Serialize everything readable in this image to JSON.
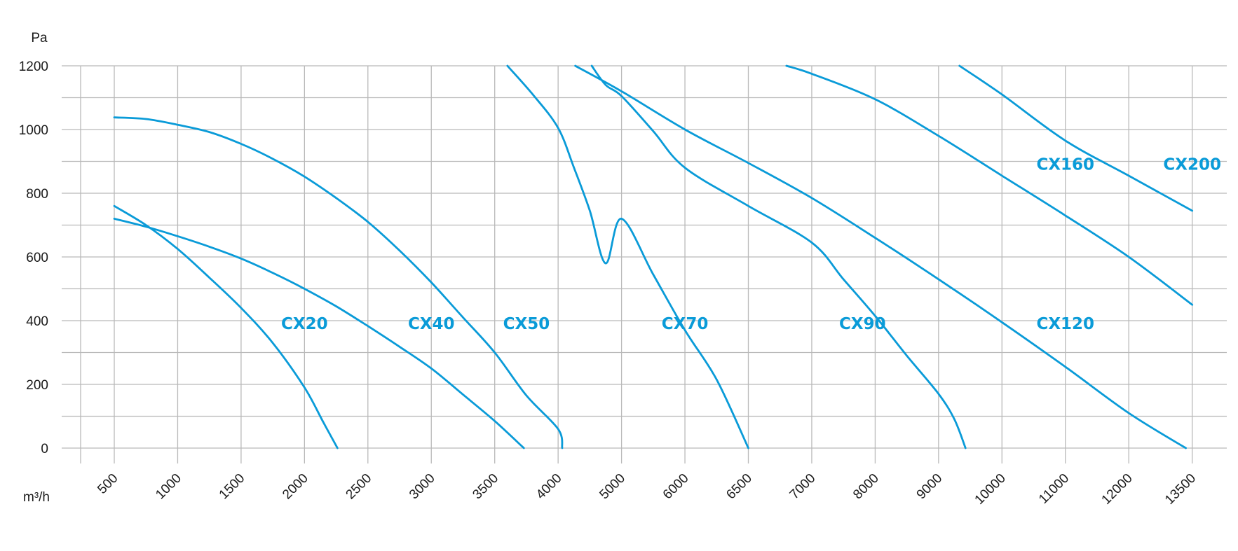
{
  "chart_data": {
    "type": "line",
    "title": "",
    "xlabel": "m³/h",
    "ylabel": "Pa",
    "x_tick_labels": [
      "500",
      "1000",
      "1500",
      "2000",
      "2500",
      "3000",
      "3500",
      "4000",
      "5000",
      "6000",
      "6500",
      "7000",
      "8000",
      "9000",
      "10000",
      "11000",
      "12000",
      "13500"
    ],
    "x_scale_note": "non-uniform axis: tick labels are equally spaced",
    "y_ticks": [
      0,
      200,
      400,
      600,
      800,
      1000,
      1200
    ],
    "ylim": [
      0,
      1200
    ],
    "grid": true,
    "legend": "none (series labels placed inside plot)",
    "line_color": "#0a9bd8",
    "series": [
      {
        "name": "CX20",
        "points": [
          [
            500,
            760
          ],
          [
            750,
            700
          ],
          [
            1000,
            625
          ],
          [
            1250,
            535
          ],
          [
            1500,
            440
          ],
          [
            1750,
            330
          ],
          [
            2000,
            190
          ],
          [
            2150,
            80
          ],
          [
            2260,
            0
          ]
        ]
      },
      {
        "name": "CX40",
        "points": [
          [
            500,
            720
          ],
          [
            750,
            695
          ],
          [
            1000,
            665
          ],
          [
            1250,
            632
          ],
          [
            1500,
            595
          ],
          [
            1750,
            550
          ],
          [
            2000,
            500
          ],
          [
            2250,
            445
          ],
          [
            2500,
            383
          ],
          [
            2750,
            318
          ],
          [
            3000,
            250
          ],
          [
            3250,
            168
          ],
          [
            3500,
            85
          ],
          [
            3730,
            0
          ]
        ]
      },
      {
        "name": "CX50",
        "points": [
          [
            500,
            1038
          ],
          [
            750,
            1033
          ],
          [
            1000,
            1015
          ],
          [
            1250,
            992
          ],
          [
            1500,
            955
          ],
          [
            1750,
            908
          ],
          [
            2000,
            852
          ],
          [
            2250,
            785
          ],
          [
            2500,
            710
          ],
          [
            2750,
            620
          ],
          [
            3000,
            520
          ],
          [
            3250,
            410
          ],
          [
            3500,
            300
          ],
          [
            3750,
            165
          ],
          [
            4000,
            60
          ],
          [
            4065,
            0
          ]
        ]
      },
      {
        "name": "CX70",
        "points": [
          [
            3600,
            1200
          ],
          [
            3800,
            1110
          ],
          [
            4000,
            1005
          ],
          [
            4250,
            880
          ],
          [
            4500,
            745
          ],
          [
            4750,
            580
          ],
          [
            5000,
            720
          ],
          [
            5500,
            545
          ],
          [
            6000,
            370
          ],
          [
            6250,
            215
          ],
          [
            6500,
            0
          ]
        ]
      },
      {
        "name": "CX90",
        "points": [
          [
            4530,
            1200
          ],
          [
            4750,
            1140
          ],
          [
            5000,
            1105
          ],
          [
            5500,
            995
          ],
          [
            6000,
            880
          ],
          [
            6500,
            760
          ],
          [
            7000,
            645
          ],
          [
            7500,
            530
          ],
          [
            8000,
            415
          ],
          [
            8500,
            290
          ],
          [
            9000,
            170
          ],
          [
            9250,
            90
          ],
          [
            9425,
            0
          ]
        ]
      },
      {
        "name": "CX120",
        "points": [
          [
            4270,
            1200
          ],
          [
            5000,
            1120
          ],
          [
            6000,
            1000
          ],
          [
            6500,
            895
          ],
          [
            7000,
            785
          ],
          [
            8000,
            660
          ],
          [
            9000,
            530
          ],
          [
            10000,
            395
          ],
          [
            11000,
            255
          ],
          [
            12000,
            110
          ],
          [
            13350,
            0
          ]
        ]
      },
      {
        "name": "CX160",
        "points": [
          [
            6800,
            1200
          ],
          [
            7000,
            1175
          ],
          [
            8000,
            1095
          ],
          [
            9000,
            980
          ],
          [
            10000,
            855
          ],
          [
            11000,
            730
          ],
          [
            12000,
            600
          ],
          [
            13500,
            450
          ]
        ]
      },
      {
        "name": "CX200",
        "points": [
          [
            9330,
            1200
          ],
          [
            10000,
            1110
          ],
          [
            11000,
            965
          ],
          [
            12000,
            855
          ],
          [
            13500,
            745
          ]
        ]
      }
    ],
    "series_labels": [
      {
        "name": "CX20",
        "x": 2000,
        "y": 350
      },
      {
        "name": "CX40",
        "x": 3000,
        "y": 350
      },
      {
        "name": "CX50",
        "x": 3750,
        "y": 350
      },
      {
        "name": "CX70",
        "x": 6000,
        "y": 350
      },
      {
        "name": "CX90",
        "x": 7800,
        "y": 350
      },
      {
        "name": "CX120",
        "x": 11000,
        "y": 350
      },
      {
        "name": "CX160",
        "x": 11000,
        "y": 850
      },
      {
        "name": "CX200",
        "x": 13500,
        "y": 850
      }
    ]
  }
}
